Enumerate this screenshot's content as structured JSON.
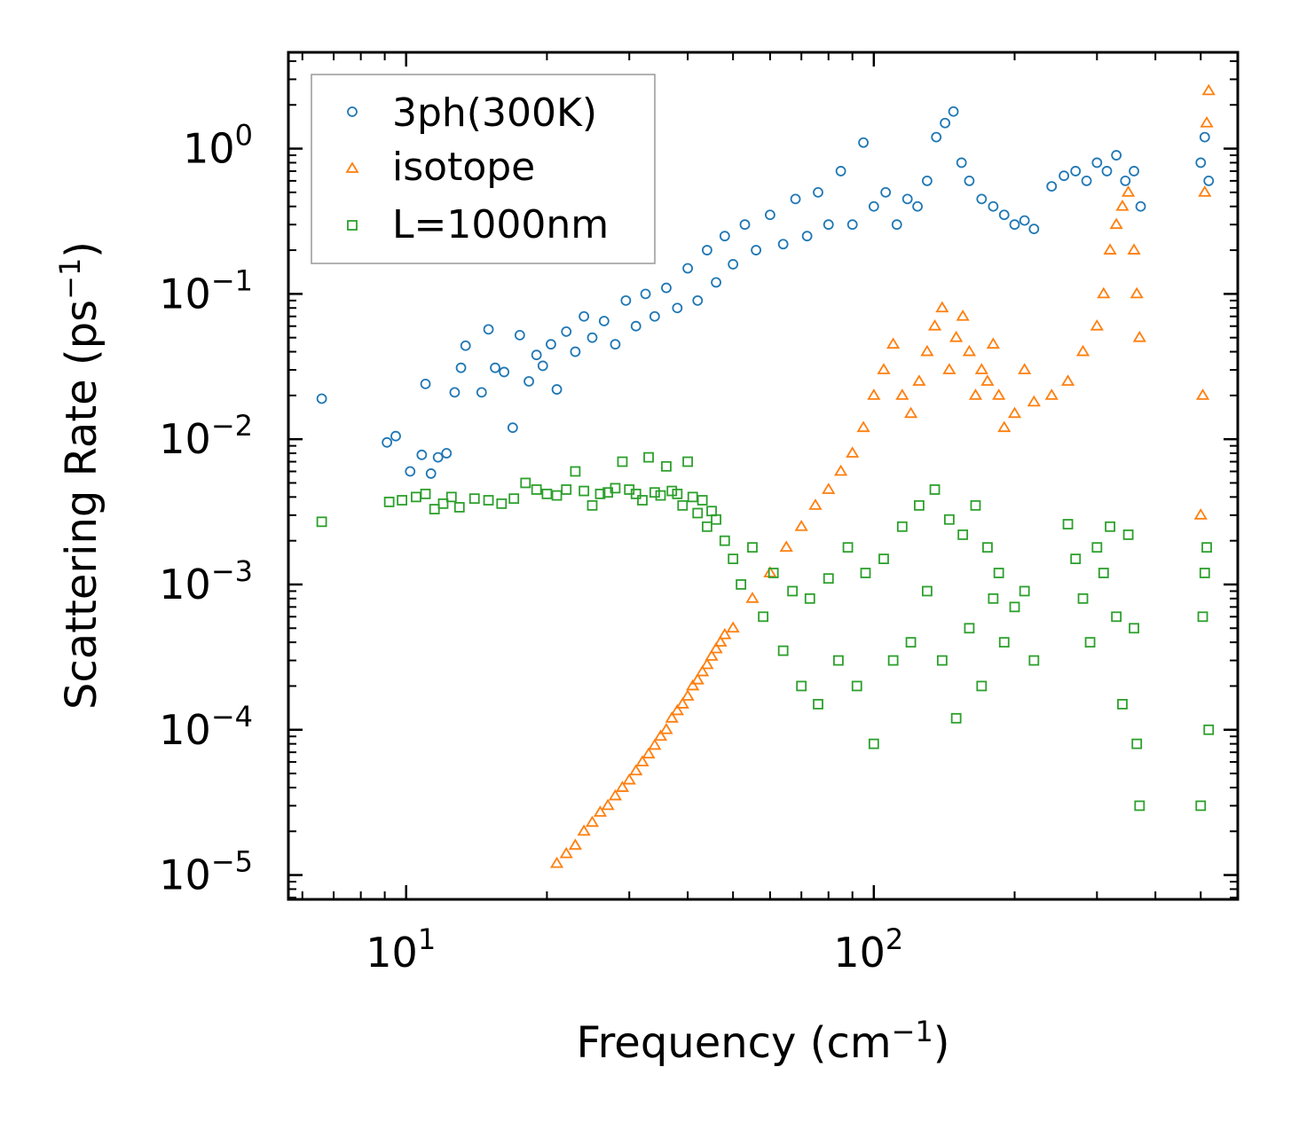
{
  "chart_data": {
    "type": "scatter",
    "title": "",
    "xlabel": "Frequency (cm",
    "xlabel_sup": "−1",
    "xlabel_close": ")",
    "ylabel": "Scattering Rate (ps",
    "ylabel_sup": "−1",
    "ylabel_close": ")",
    "xscale": "log",
    "yscale": "log",
    "xlim": [
      5.6,
      600
    ],
    "ylim": [
      6.8e-06,
      4.6
    ],
    "x_ticks": [
      {
        "value": 10,
        "base": "10",
        "exp": "1"
      },
      {
        "value": 100,
        "base": "10",
        "exp": "2"
      }
    ],
    "y_ticks": [
      {
        "value": 1,
        "base": "10",
        "exp": "0"
      },
      {
        "value": 0.1,
        "base": "10",
        "exp": "−1"
      },
      {
        "value": 0.01,
        "base": "10",
        "exp": "−2"
      },
      {
        "value": 0.001,
        "base": "10",
        "exp": "−3"
      },
      {
        "value": 0.0001,
        "base": "10",
        "exp": "−4"
      },
      {
        "value": 1e-05,
        "base": "10",
        "exp": "−5"
      }
    ],
    "legend_position": "top-left",
    "series": [
      {
        "name": "3ph(300K)",
        "marker": "circle",
        "color": "#1f77b4",
        "x": [
          6.6,
          9.1,
          9.5,
          10.2,
          10.8,
          11,
          11.3,
          11.7,
          12.2,
          12.7,
          13.1,
          13.4,
          14.5,
          15,
          15.5,
          16.2,
          16.9,
          17.5,
          18.3,
          19,
          19.6,
          20.4,
          21,
          22,
          23,
          24,
          25,
          26.5,
          28,
          29.5,
          31,
          32.5,
          34,
          36,
          38,
          40,
          42,
          44,
          46,
          48,
          50,
          53,
          56,
          60,
          64,
          68,
          72,
          76,
          80,
          85,
          90,
          95,
          100,
          106,
          112,
          118,
          124,
          130,
          136,
          142,
          148,
          154,
          160,
          170,
          180,
          190,
          200,
          210,
          220,
          240,
          255,
          270,
          285,
          300,
          315,
          330,
          345,
          360,
          372,
          500,
          510,
          520
        ],
        "y": [
          0.019,
          0.0095,
          0.0105,
          0.006,
          0.0078,
          0.024,
          0.0058,
          0.0075,
          0.008,
          0.021,
          0.031,
          0.044,
          0.021,
          0.057,
          0.031,
          0.029,
          0.012,
          0.052,
          0.025,
          0.038,
          0.032,
          0.045,
          0.022,
          0.055,
          0.04,
          0.07,
          0.05,
          0.065,
          0.045,
          0.09,
          0.06,
          0.1,
          0.07,
          0.11,
          0.08,
          0.15,
          0.09,
          0.2,
          0.12,
          0.25,
          0.16,
          0.3,
          0.2,
          0.35,
          0.22,
          0.45,
          0.25,
          0.5,
          0.3,
          0.7,
          0.3,
          1.1,
          0.4,
          0.5,
          0.3,
          0.45,
          0.4,
          0.6,
          1.2,
          1.5,
          1.8,
          0.8,
          0.6,
          0.45,
          0.4,
          0.35,
          0.3,
          0.32,
          0.28,
          0.55,
          0.65,
          0.7,
          0.6,
          0.8,
          0.7,
          0.9,
          0.6,
          0.7,
          0.4,
          0.8,
          1.2,
          0.6
        ]
      },
      {
        "name": "isotope",
        "marker": "triangle",
        "color": "#ff7f0e",
        "x": [
          21,
          22,
          23,
          24,
          25,
          26,
          27,
          28,
          29,
          30,
          31,
          32,
          33,
          34,
          35,
          36,
          37,
          38,
          39,
          40,
          41,
          42,
          43,
          44,
          45,
          46,
          47,
          48,
          50,
          55,
          60,
          65,
          70,
          75,
          80,
          85,
          90,
          95,
          100,
          105,
          110,
          115,
          120,
          125,
          130,
          135,
          140,
          145,
          150,
          155,
          160,
          165,
          170,
          175,
          180,
          185,
          190,
          200,
          210,
          220,
          240,
          260,
          280,
          300,
          310,
          320,
          330,
          340,
          350,
          360,
          365,
          370,
          500,
          505,
          510,
          515,
          520
        ],
        "y": [
          1.2e-05,
          1.4e-05,
          1.6e-05,
          2e-05,
          2.3e-05,
          2.7e-05,
          3e-05,
          3.5e-05,
          4e-05,
          4.5e-05,
          5.2e-05,
          6e-05,
          6.8e-05,
          7.8e-05,
          9e-05,
          0.0001,
          0.00012,
          0.000135,
          0.00015,
          0.00017,
          0.0002,
          0.00022,
          0.00025,
          0.00028,
          0.00032,
          0.00036,
          0.0004,
          0.00045,
          0.0005,
          0.0008,
          0.0012,
          0.0018,
          0.0025,
          0.0035,
          0.0045,
          0.006,
          0.008,
          0.012,
          0.02,
          0.03,
          0.045,
          0.02,
          0.015,
          0.025,
          0.04,
          0.06,
          0.08,
          0.03,
          0.05,
          0.07,
          0.04,
          0.02,
          0.03,
          0.025,
          0.045,
          0.02,
          0.012,
          0.015,
          0.03,
          0.018,
          0.02,
          0.025,
          0.04,
          0.06,
          0.1,
          0.2,
          0.3,
          0.4,
          0.5,
          0.2,
          0.1,
          0.05,
          0.003,
          0.02,
          0.5,
          1.5,
          2.5
        ]
      },
      {
        "name": "L=1000nm",
        "marker": "square",
        "color": "#2ca02c",
        "x": [
          6.6,
          9.2,
          9.8,
          10.5,
          11,
          11.5,
          12,
          12.5,
          13,
          14,
          15,
          16,
          17,
          18,
          19,
          20,
          21,
          22,
          23,
          24,
          25,
          26,
          27,
          28,
          29,
          30,
          31,
          32,
          33,
          34,
          35,
          36,
          37,
          38,
          39,
          40,
          41,
          42,
          43,
          44,
          45,
          46,
          48,
          50,
          52,
          55,
          58,
          61,
          64,
          67,
          70,
          73,
          76,
          80,
          84,
          88,
          92,
          96,
          100,
          105,
          110,
          115,
          120,
          125,
          130,
          135,
          140,
          145,
          150,
          155,
          160,
          165,
          170,
          175,
          180,
          185,
          190,
          200,
          210,
          220,
          260,
          270,
          280,
          290,
          300,
          310,
          320,
          330,
          340,
          350,
          360,
          365,
          370,
          500,
          505,
          510,
          515,
          520
        ],
        "y": [
          0.0027,
          0.0037,
          0.0038,
          0.004,
          0.0042,
          0.0033,
          0.0036,
          0.004,
          0.0034,
          0.0039,
          0.0038,
          0.0036,
          0.0039,
          0.005,
          0.0045,
          0.0042,
          0.0041,
          0.0045,
          0.006,
          0.0044,
          0.0035,
          0.0042,
          0.0043,
          0.0046,
          0.007,
          0.0045,
          0.0042,
          0.0038,
          0.0075,
          0.0043,
          0.0041,
          0.0065,
          0.0044,
          0.0042,
          0.0035,
          0.007,
          0.004,
          0.0031,
          0.0038,
          0.0025,
          0.0032,
          0.0028,
          0.002,
          0.0015,
          0.001,
          0.0018,
          0.0006,
          0.0012,
          0.00035,
          0.0009,
          0.0002,
          0.0008,
          0.00015,
          0.0011,
          0.0003,
          0.0018,
          0.0002,
          0.0012,
          8e-05,
          0.0015,
          0.0003,
          0.0025,
          0.0004,
          0.0035,
          0.0009,
          0.0045,
          0.0003,
          0.0028,
          0.00012,
          0.0022,
          0.0005,
          0.0035,
          0.0002,
          0.0018,
          0.0008,
          0.0012,
          0.0004,
          0.0007,
          0.0009,
          0.0003,
          0.0026,
          0.0015,
          0.0008,
          0.0004,
          0.0018,
          0.0012,
          0.0025,
          0.0006,
          0.00015,
          0.0022,
          0.0005,
          8e-05,
          3e-05,
          3e-05,
          0.0006,
          0.0012,
          0.0018,
          0.0001
        ]
      }
    ]
  }
}
